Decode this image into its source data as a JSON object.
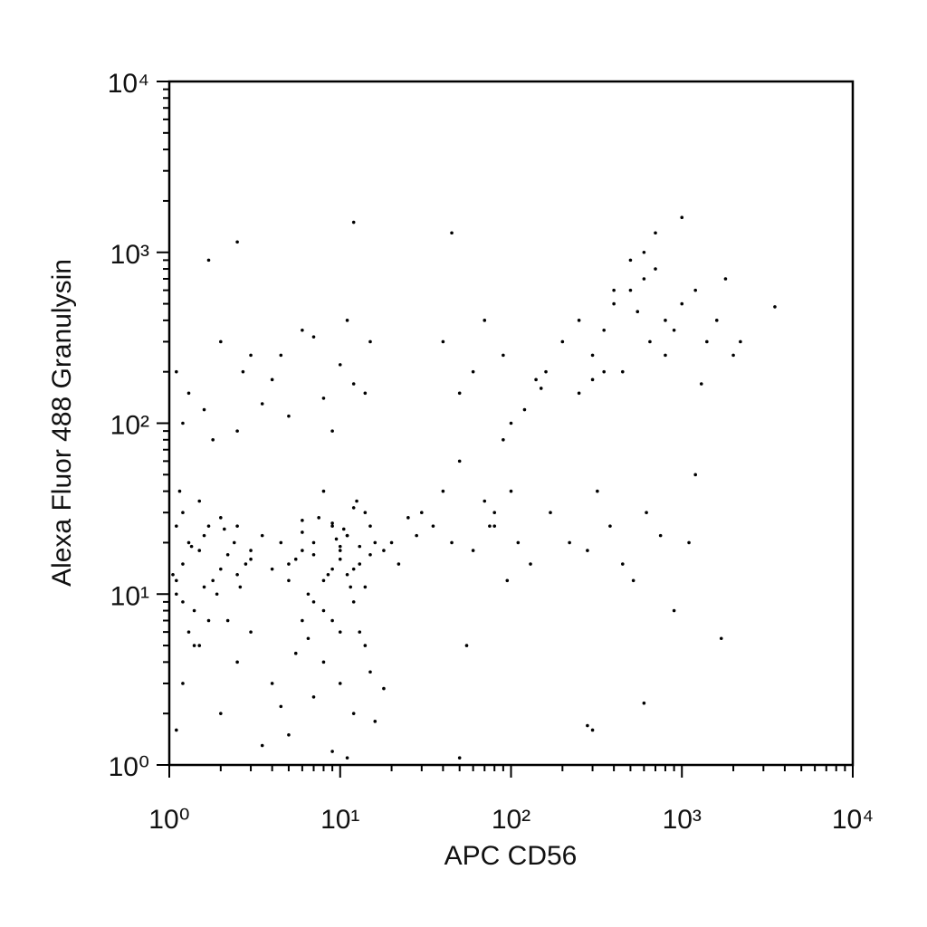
{
  "chart_data": {
    "type": "scatter",
    "xlabel": "APC CD56",
    "ylabel": "Alexa Fluor 488 Granulysin",
    "log_x": true,
    "log_y": true,
    "color": "#000000",
    "xlim": [
      1,
      10000
    ],
    "ylim": [
      1,
      10000
    ],
    "xticks": [
      {
        "value": 1,
        "label": "10⁰"
      },
      {
        "value": 10,
        "label": "10¹"
      },
      {
        "value": 100,
        "label": "10²"
      },
      {
        "value": 1000,
        "label": "10³"
      },
      {
        "value": 10000,
        "label": "10⁴"
      }
    ],
    "yticks": [
      {
        "value": 1,
        "label": "10⁰"
      },
      {
        "value": 10,
        "label": "10¹"
      },
      {
        "value": 100,
        "label": "10²"
      },
      {
        "value": 1000,
        "label": "10³"
      },
      {
        "value": 10000,
        "label": "10⁴"
      }
    ],
    "xminorticks": [
      2,
      3,
      4,
      5,
      6,
      7,
      8,
      9,
      20,
      30,
      40,
      50,
      60,
      70,
      80,
      90,
      200,
      300,
      400,
      500,
      600,
      700,
      800,
      900,
      2000,
      3000,
      4000,
      5000,
      6000,
      7000,
      8000,
      9000
    ],
    "yminorticks": [
      2,
      3,
      4,
      5,
      6,
      7,
      8,
      9,
      20,
      30,
      40,
      50,
      60,
      70,
      80,
      90,
      200,
      300,
      400,
      500,
      600,
      700,
      800,
      900,
      2000,
      3000,
      4000,
      5000,
      6000,
      7000,
      8000,
      9000
    ],
    "x": [
      5,
      6,
      7,
      8,
      9,
      10,
      11,
      12,
      13,
      14,
      15,
      6.5,
      7.5,
      8.5,
      9.5,
      10.5,
      11.5,
      12.5,
      5.5,
      4.5,
      7,
      8,
      9,
      10,
      11,
      12,
      6,
      5,
      13,
      14,
      8,
      9,
      10,
      11,
      7,
      6,
      12,
      15,
      16,
      18,
      4,
      3.5,
      3,
      2.5,
      20,
      22,
      25,
      28,
      9,
      10,
      1.1,
      1.2,
      1.3,
      1.5,
      1.7,
      2,
      1.1,
      1.2,
      1.4,
      1.6,
      1.8,
      2.2,
      1.05,
      1.3,
      1.5,
      1.9,
      2.4,
      2.8,
      1.1,
      1.2,
      1.4,
      1.6,
      2,
      2.5,
      3,
      1.15,
      1.35,
      1.7,
      2.1,
      2.6,
      1.2,
      1.5,
      2,
      2.5,
      3,
      4,
      5,
      6,
      7,
      8,
      9,
      10,
      12,
      14,
      16,
      3.5,
      4.5,
      5.5,
      11,
      13,
      15,
      18,
      1.1,
      2.2,
      6.5,
      1.1,
      1.3,
      1.6,
      2,
      2.5,
      3,
      4,
      5,
      6,
      8,
      10,
      12,
      15,
      1.2,
      1.8,
      2.7,
      3.5,
      4.5,
      7,
      9,
      11,
      14,
      1.7,
      2.5,
      12,
      30,
      35,
      40,
      45,
      50,
      60,
      70,
      80,
      90,
      100,
      120,
      140,
      160,
      50,
      60,
      80,
      100,
      130,
      170,
      40,
      45,
      70,
      90,
      110,
      150,
      55,
      75,
      95,
      50,
      300,
      200,
      250,
      300,
      350,
      400,
      450,
      500,
      550,
      600,
      650,
      700,
      800,
      900,
      1000,
      1200,
      1400,
      1600,
      1800,
      2000,
      2200,
      250,
      300,
      350,
      400,
      500,
      600,
      700,
      800,
      1000,
      1300,
      220,
      280,
      320,
      380,
      450,
      520,
      620,
      750,
      900,
      1100,
      3500,
      1700,
      600,
      1200,
      280
    ],
    "values": [
      15,
      18,
      20,
      12,
      25,
      16,
      22,
      14,
      19,
      30,
      17,
      10,
      28,
      13,
      21,
      24,
      11,
      35,
      16,
      20,
      9,
      8,
      26,
      18,
      13,
      32,
      23,
      12,
      15,
      11,
      40,
      14,
      19,
      22,
      17,
      27,
      9,
      25,
      20,
      18,
      14,
      22,
      18,
      25,
      20,
      15,
      28,
      22,
      7,
      6,
      12,
      15,
      20,
      18,
      25,
      14,
      10,
      30,
      8,
      22,
      12,
      17,
      13,
      6,
      35,
      10,
      20,
      15,
      25,
      9,
      5,
      11,
      28,
      13,
      16,
      40,
      19,
      7,
      24,
      11,
      3,
      5,
      2,
      4,
      6,
      3,
      1.5,
      7,
      2.5,
      4,
      1.2,
      3,
      2,
      5,
      1.8,
      1.3,
      2.2,
      4.5,
      1.1,
      6,
      3.5,
      2.8,
      1.6,
      7,
      5.5,
      200,
      150,
      120,
      300,
      90,
      250,
      180,
      110,
      350,
      140,
      220,
      170,
      300,
      100,
      80,
      200,
      130,
      250,
      320,
      90,
      400,
      150,
      900,
      1150,
      1500,
      30,
      25,
      40,
      20,
      150,
      200,
      35,
      30,
      250,
      100,
      120,
      180,
      200,
      60,
      18,
      25,
      40,
      15,
      30,
      300,
      1300,
      400,
      80,
      20,
      160,
      5,
      25,
      12,
      1.1,
      1.6,
      300,
      400,
      250,
      350,
      500,
      200,
      600,
      450,
      700,
      300,
      800,
      400,
      350,
      500,
      600,
      300,
      400,
      700,
      250,
      300,
      150,
      180,
      200,
      600,
      900,
      1000,
      1300,
      250,
      1600,
      170,
      20,
      18,
      40,
      25,
      15,
      12,
      30,
      22,
      8,
      20,
      480,
      5.5,
      2.3,
      50,
      1.7
    ]
  }
}
